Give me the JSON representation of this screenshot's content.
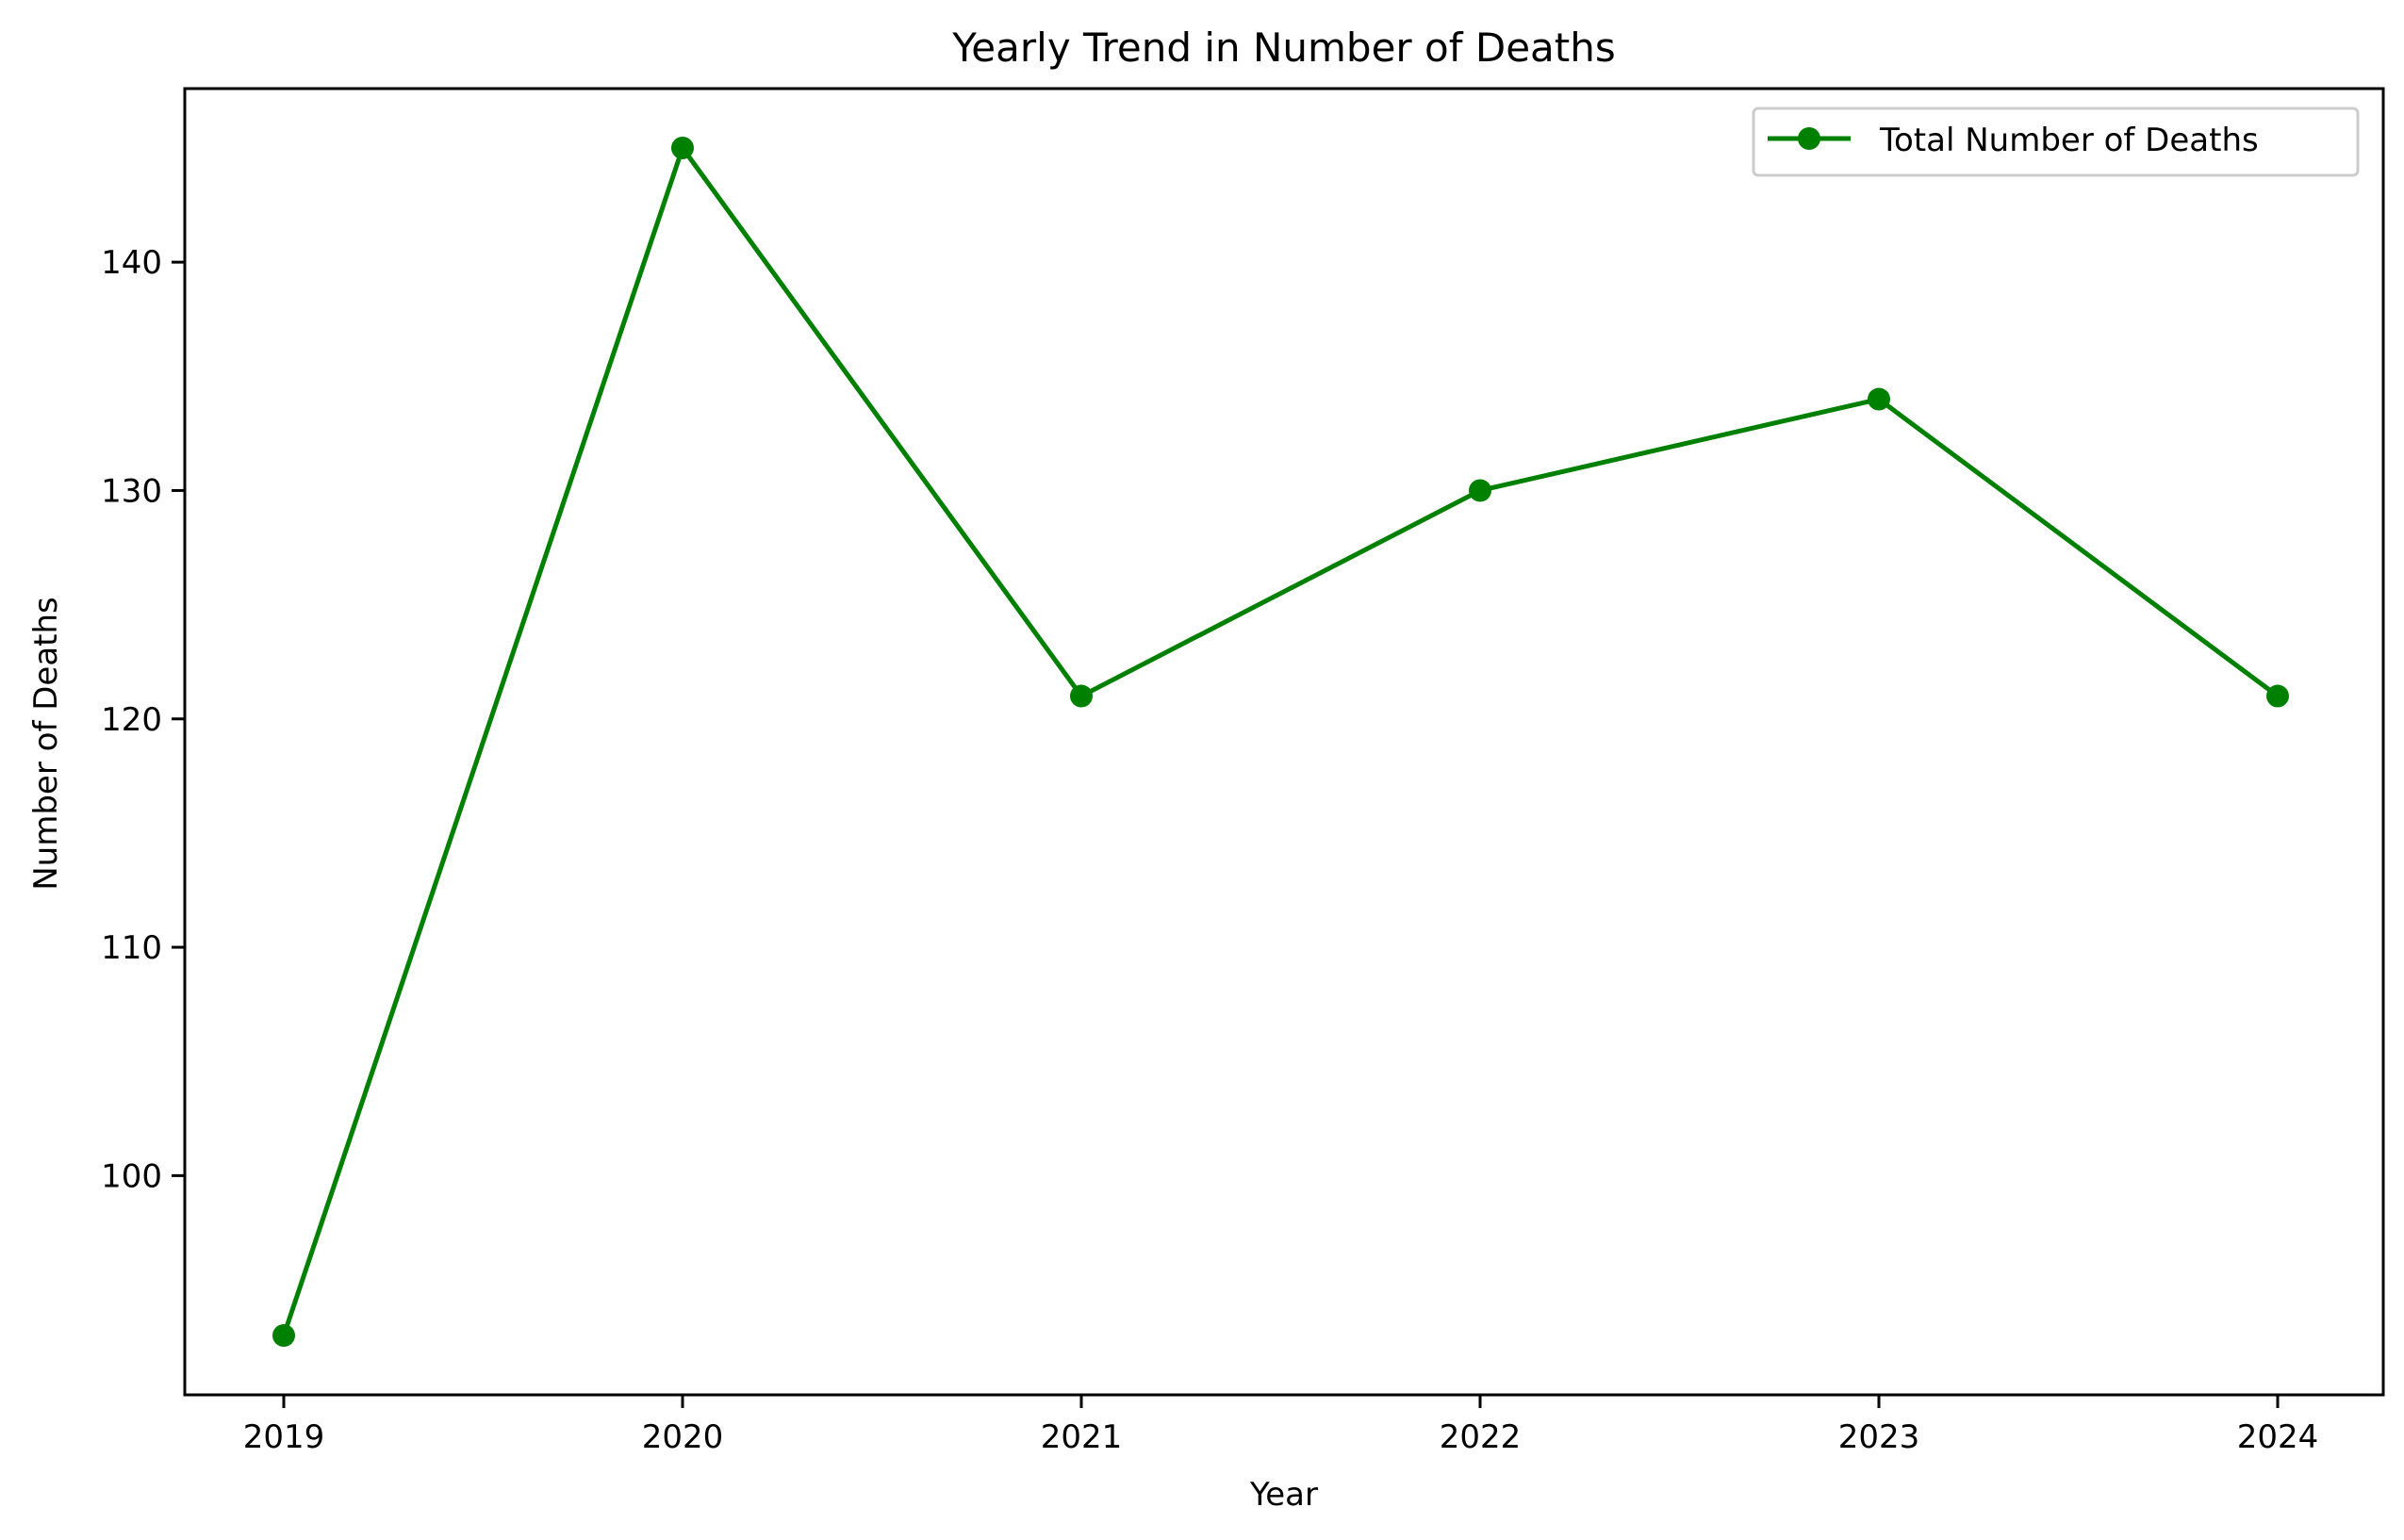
{
  "chart_data": {
    "type": "line",
    "title": "Yearly Trend in Number of Deaths",
    "xlabel": "Year",
    "ylabel": "Number of Deaths",
    "x": [
      "2019",
      "2020",
      "2021",
      "2022",
      "2023",
      "2024"
    ],
    "y_ticks": [
      100,
      110,
      120,
      130,
      140
    ],
    "ylim": [
      90.4,
      147.6
    ],
    "grid": false,
    "legend_position": "top-right",
    "series": [
      {
        "name": "Total Number of Deaths",
        "values": [
          93,
          145,
          121,
          130,
          134,
          121
        ],
        "color": "#008000",
        "marker": "circle"
      }
    ]
  }
}
